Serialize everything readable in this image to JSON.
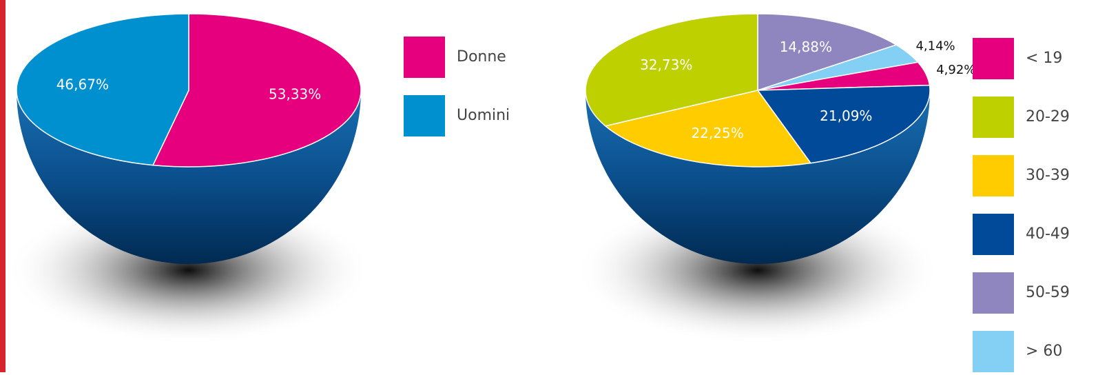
{
  "chart_data": [
    {
      "type": "pie",
      "categories": [
        "Donne",
        "Uomini"
      ],
      "values": [
        53.33,
        46.67
      ],
      "value_labels": [
        "53,33%",
        "46,67%"
      ],
      "colors": [
        "#e6007e",
        "#0090d0"
      ]
    },
    {
      "type": "pie",
      "categories": [
        "< 19",
        "20-29",
        "30-39",
        "40-49",
        "50-59",
        "> 60"
      ],
      "values": [
        4.92,
        32.73,
        22.25,
        21.09,
        14.88,
        4.14
      ],
      "value_labels": [
        "4,92%",
        "32,73%",
        "22,25%",
        "21,09%",
        "14,88%",
        "4,14%"
      ],
      "colors": [
        "#e6007e",
        "#bed000",
        "#ffcc00",
        "#004a99",
        "#8f86bf",
        "#84d0f5"
      ]
    }
  ]
}
